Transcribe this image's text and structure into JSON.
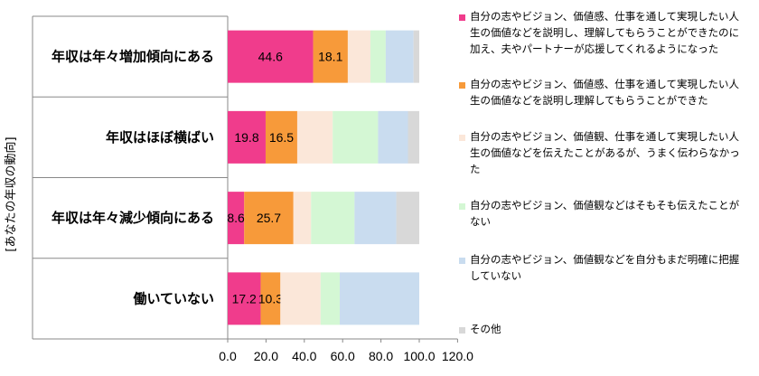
{
  "chart_data": {
    "type": "bar",
    "orientation": "horizontal",
    "stacked": true,
    "categories": [
      "年収は年々増加傾向にある",
      "年収はほぼ横ばい",
      "年収は年々減少傾向にある",
      "働いていない"
    ],
    "ylabel": "[あなたの年収の動向]",
    "xlim": [
      0,
      120
    ],
    "x_ticks": [
      "0.0",
      "20.0",
      "40.0",
      "60.0",
      "80.0",
      "100.0",
      "120.0"
    ],
    "grid": false,
    "legend_position": "right",
    "series": [
      {
        "name": "自分の志やビジョン、価値感、仕事を通して実現したい人生の価値などを説明し、理解してもらうことができたのに加え、夫やパートナーが応援してくれるようになった",
        "color": "#F03C8C",
        "values": [
          44.6,
          19.8,
          8.6,
          17.2
        ],
        "labels": [
          "44.6",
          "19.8",
          "8.6",
          "17.2"
        ]
      },
      {
        "name": "自分の志やビジョン、価値感、仕事を通して実現したい人生の価値などを説明し理解してもらうことができた",
        "color": "#F79A3A",
        "values": [
          18.1,
          16.5,
          25.7,
          10.3
        ],
        "labels": [
          "18.1",
          "16.5",
          "25.7",
          "10.3"
        ]
      },
      {
        "name": "自分の志やビジョン、価値観、仕事を通して実現したい人生の価値などを伝えたことがあるが、うまく伝わらなかった",
        "color": "#FBE7D9",
        "values": [
          11.8,
          18.5,
          9.2,
          21.0
        ],
        "labels": [
          "",
          "",
          "",
          ""
        ]
      },
      {
        "name": "自分の志やビジョン、価値観などはそもそも伝えたことがない",
        "color": "#D4F7D4",
        "values": [
          8.0,
          23.7,
          22.7,
          10.0
        ],
        "labels": [
          "",
          "",
          "",
          ""
        ]
      },
      {
        "name": "自分の志やビジョン、価値観などを自分もまだ明確に把握していない",
        "color": "#C9DCEF",
        "values": [
          14.5,
          15.6,
          21.8,
          41.5
        ],
        "labels": [
          "",
          "",
          "",
          ""
        ]
      },
      {
        "name": "その他",
        "color": "#D8D8D8",
        "values": [
          3.0,
          5.9,
          12.0,
          0.0
        ],
        "labels": [
          "",
          "",
          "",
          ""
        ]
      }
    ]
  }
}
